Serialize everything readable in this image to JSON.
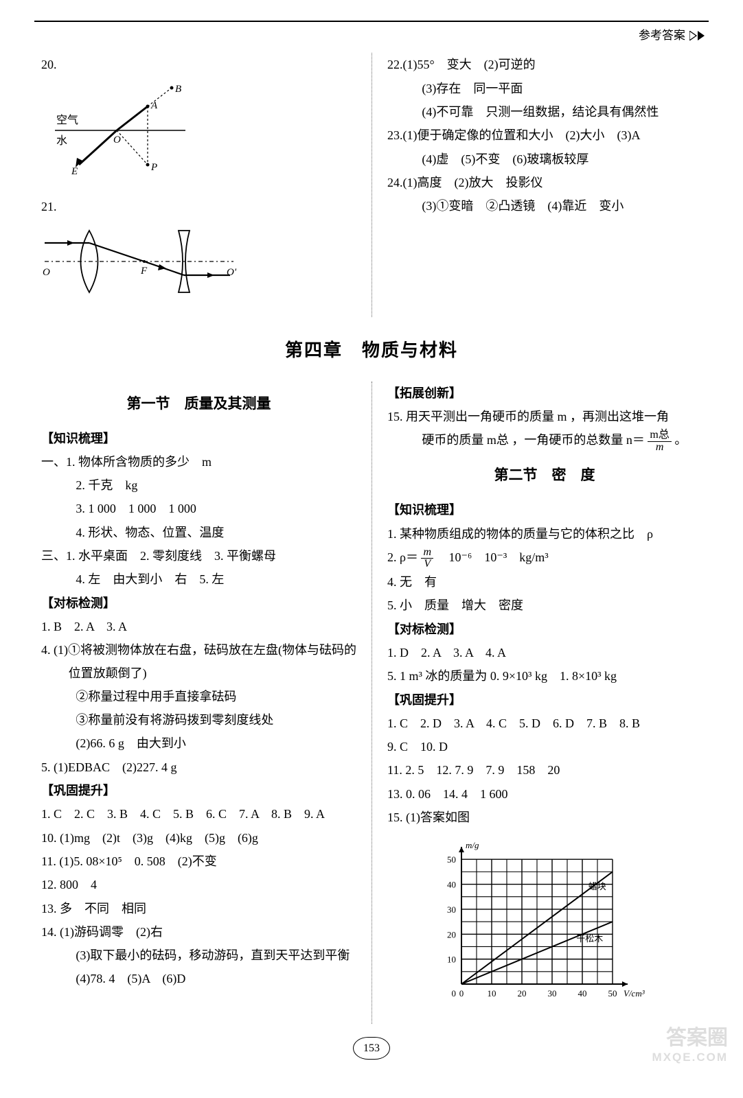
{
  "header": {
    "right": "参考答案"
  },
  "page_number": "153",
  "watermark": {
    "main": "答案圈",
    "sub": "MXQE.COM"
  },
  "top": {
    "left": {
      "q20_label": "20.",
      "q20_diagram": {
        "type": "optics-refraction",
        "labels": [
          "空气",
          "水",
          "A",
          "B",
          "O",
          "P",
          "E"
        ],
        "line_color": "#000",
        "line_width": 1.5
      },
      "q21_label": "21.",
      "q21_diagram": {
        "type": "lens-ray",
        "labels": [
          "O",
          "F",
          "O'"
        ],
        "line_color": "#000",
        "line_width": 1.5
      }
    },
    "right": {
      "q22": {
        "num": "22.",
        "p1": "(1)55°　变大　(2)可逆的",
        "p2": "(3)存在　同一平面",
        "p3": "(4)不可靠　只测一组数据，结论具有偶然性"
      },
      "q23": {
        "num": "23.",
        "p1": "(1)便于确定像的位置和大小　(2)大小　(3)A",
        "p2": "(4)虚　(5)不变　(6)玻璃板较厚"
      },
      "q24": {
        "num": "24.",
        "p1": "(1)高度　(2)放大　投影仪",
        "p2": "(3)①变暗　②凸透镜　(4)靠近　变小"
      }
    }
  },
  "chapter": "第四章　物质与材料",
  "sec1": {
    "title": "第一节　质量及其测量",
    "zs": "【知识梳理】",
    "zs1": "一、1. 物体所含物质的多少　m",
    "zs2": "2. 千克　kg",
    "zs3": "3. 1 000　1 000　1 000",
    "zs4": "4. 形状、物态、位置、温度",
    "zs5": "三、1. 水平桌面　2. 零刻度线　3. 平衡螺母",
    "zs6": "4. 左　由大到小　右　5. 左",
    "db": "【对标检测】",
    "db1": "1. B　2. A　3. A",
    "db4a": "4. (1)①将被测物体放在右盘，砝码放在左盘(物体与砝码的位置放颠倒了)",
    "db4b": "②称量过程中用手直接拿砝码",
    "db4c": "③称量前没有将游码拨到零刻度线处",
    "db4d": "(2)66. 6 g　由大到小",
    "db5": "5. (1)EDBAC　(2)227. 4 g",
    "gg": "【巩固提升】",
    "gg1": "1. C　2. C　3. B　4. C　5. B　6. C　7. A　8. B　9. A",
    "gg10": "10. (1)mg　(2)t　(3)g　(4)kg　(5)g　(6)g",
    "gg11": "11. (1)5. 08×10⁵　0. 508　(2)不变",
    "gg12": "12. 800　4",
    "gg13": "13. 多　不同　相同",
    "gg14a": "14. (1)游码调零　(2)右",
    "gg14b": "(3)取下最小的砝码，移动游码，直到天平达到平衡",
    "gg14c": "(4)78. 4　(5)A　(6)D"
  },
  "sec1r": {
    "tz": "【拓展创新】",
    "tz15a": "15. 用天平测出一角硬币的质量 m ，再测出这堆一角",
    "tz15b_pre": "硬币的质量 m总 ，一角硬币的总数量 n＝",
    "tz15b_frac_n": "m总",
    "tz15b_frac_d": "m",
    "tz15b_post": " 。"
  },
  "sec2": {
    "title": "第二节　密　度",
    "zs": "【知识梳理】",
    "zs1": "1. 某种物质组成的物体的质量与它的体积之比　ρ",
    "zs2_pre": "2. ρ＝",
    "zs2_frac_n": "m",
    "zs2_frac_d": "V",
    "zs2_post": "　10⁻⁶　10⁻³　kg/m³",
    "zs4": "4. 无　有",
    "zs5": "5. 小　质量　增大　密度",
    "db": "【对标检测】",
    "db1": "1. D　2. A　3. A　4. A",
    "db5": "5. 1 m³ 冰的质量为 0. 9×10³ kg　1. 8×10³ kg",
    "gg": "【巩固提升】",
    "gg1": "1. C　2. D　3. A　4. C　5. D　6. D　7. B　8. B",
    "gg2": "9. C　10. D",
    "gg11": "11. 2. 5　12. 7. 9　7. 9　158　20",
    "gg13": "13. 0. 06　14. 4　1 600",
    "gg15": "15. (1)答案如图",
    "chart": {
      "type": "line",
      "xlabel": "V/cm³",
      "ylabel": "m/g",
      "x_ticks": [
        0,
        10,
        20,
        30,
        40,
        50
      ],
      "y_ticks": [
        0,
        10,
        20,
        30,
        40,
        50
      ],
      "xlim": [
        0,
        55
      ],
      "ylim": [
        0,
        55
      ],
      "grid_color": "#000",
      "grid_width": 1.2,
      "background_color": "#ffffff",
      "series": [
        {
          "label": "蜡块",
          "points": [
            [
              0,
              0
            ],
            [
              50,
              45
            ]
          ],
          "color": "#000",
          "line_width": 2
        },
        {
          "label": "干松木",
          "points": [
            [
              0,
              0
            ],
            [
              50,
              25
            ]
          ],
          "color": "#000",
          "line_width": 2
        }
      ],
      "series_label_pos": {
        "蜡块": [
          42,
          38
        ],
        "干松木": [
          38,
          17
        ]
      },
      "label_fontsize": 13,
      "axis_fontsize": 13,
      "arrow_size": 7
    }
  }
}
